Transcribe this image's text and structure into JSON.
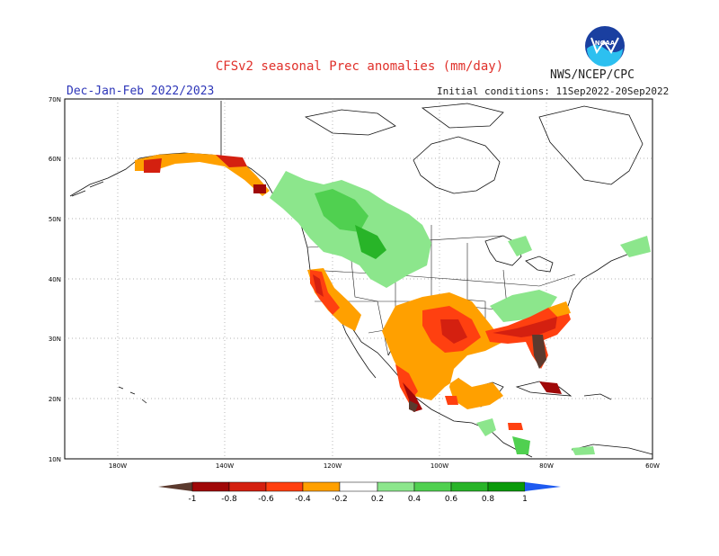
{
  "header": {
    "title": "CFSv2 seasonal Prec anomalies (mm/day)",
    "agency": "NWS/NCEP/CPC",
    "season": "Dec-Jan-Feb 2022/2023",
    "initial_conditions": "Initial conditions: 11Sep2022-20Sep2022",
    "logo_text": "NOAA"
  },
  "map": {
    "lat_labels": [
      "70N",
      "60N",
      "50N",
      "40N",
      "30N",
      "20N",
      "10N"
    ],
    "lon_labels": [
      "180W",
      "140W",
      "120W",
      "100W",
      "80W",
      "60W"
    ]
  },
  "colorbar": {
    "labels": [
      "-1",
      "-0.8",
      "-0.6",
      "-0.4",
      "-0.2",
      "0.2",
      "0.4",
      "0.6",
      "0.8",
      "1"
    ],
    "colors": {
      "lt_neg1": "#5b3a2e",
      "n08_1": "#a00808",
      "n06_08": "#d42010",
      "n04_06": "#ff4010",
      "n02_04": "#ffa000",
      "neutral": "#ffffff",
      "p02_04": "#8ce68c",
      "p04_06": "#50d050",
      "p06_08": "#28b428",
      "p08_1": "#0a9a0a",
      "gt1": "#1e5af0"
    }
  }
}
